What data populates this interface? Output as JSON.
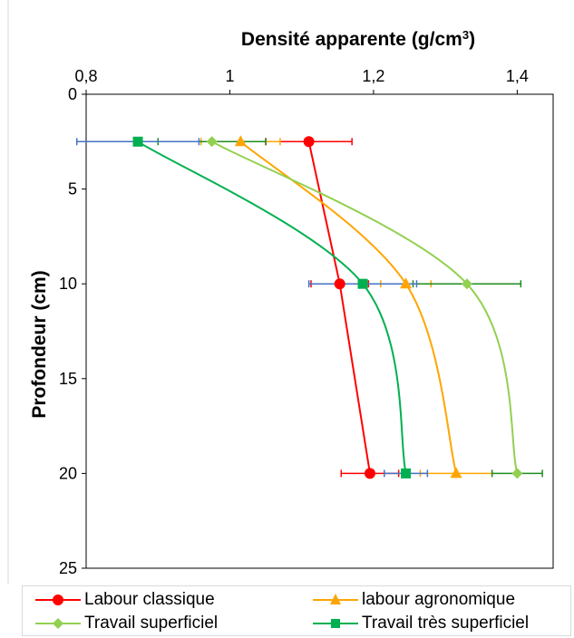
{
  "chart_data": {
    "type": "line",
    "title": "Densité apparente (g/cm³)",
    "xlabel": "Densité apparente (g/cm³)",
    "ylabel": "Profondeur (cm)",
    "x_axis_position": "top",
    "y_axis_reversed": true,
    "xlim": [
      0.8,
      1.45
    ],
    "ylim": [
      0,
      25
    ],
    "x_ticks": [
      "0,8",
      "1",
      "1,2",
      "1,4"
    ],
    "x_tick_values": [
      0.8,
      1.0,
      1.2,
      1.4
    ],
    "y_ticks": [
      "0",
      "5",
      "10",
      "15",
      "20",
      "25"
    ],
    "y_tick_values": [
      0,
      5,
      10,
      15,
      20,
      25
    ],
    "grid": false,
    "legend_position": "bottom",
    "series": [
      {
        "name": "Labour classique",
        "color": "#ff0000",
        "errcolor": "#ff0000",
        "marker": "circle",
        "smooth": false,
        "x": [
          1.11,
          1.153,
          1.195
        ],
        "y": [
          2.5,
          10,
          20
        ],
        "xerr": [
          0.06,
          0.04,
          0.04
        ]
      },
      {
        "name": "labour agronomique",
        "color": "#ffa500",
        "errcolor": "#ffa500",
        "marker": "triangle",
        "smooth": true,
        "x": [
          1.015,
          1.245,
          1.315
        ],
        "y": [
          2.5,
          10,
          20
        ],
        "xerr": [
          0.055,
          0.035,
          0.05
        ]
      },
      {
        "name": "Travail superficiel",
        "color": "#92d050",
        "errcolor": "#1e8c1e",
        "marker": "diamond",
        "smooth": true,
        "x": [
          0.975,
          1.33,
          1.4
        ],
        "y": [
          2.5,
          10,
          20
        ],
        "xerr": [
          0.075,
          0.075,
          0.035
        ]
      },
      {
        "name": "Travail très superficiel",
        "color": "#00b050",
        "errcolor": "#4472c4",
        "marker": "square",
        "smooth": true,
        "x": [
          0.872,
          1.185,
          1.245
        ],
        "y": [
          2.5,
          10,
          20
        ],
        "xerr": [
          0.085,
          0.075,
          0.03
        ]
      }
    ]
  }
}
